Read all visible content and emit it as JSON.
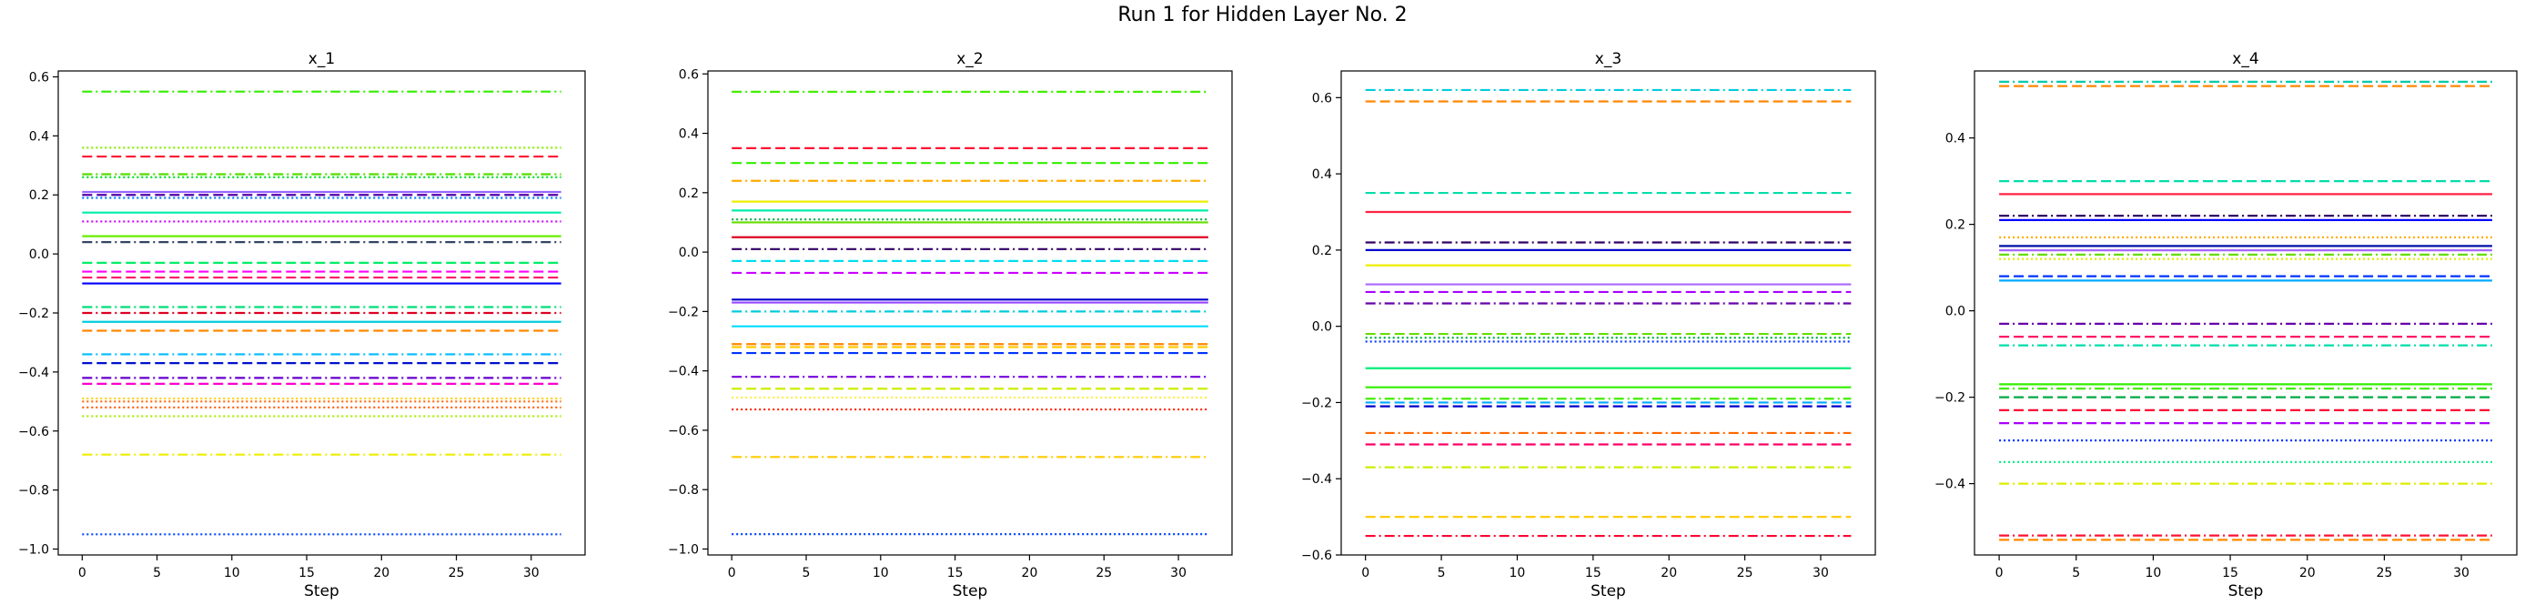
{
  "figure_title": "Run 1 for Hidden Layer No. 2",
  "chart_data": [
    {
      "type": "line",
      "title": "x_1",
      "xlabel": "Step",
      "ylabel": "",
      "xlim": [
        -1.6,
        33.6
      ],
      "ylim": [
        -1.02,
        0.62
      ],
      "xticks": [
        0,
        5,
        10,
        15,
        20,
        25,
        30
      ],
      "yticks": [
        -1.0,
        -0.8,
        -0.6,
        -0.4,
        -0.2,
        0.0,
        0.2,
        0.4,
        0.6
      ],
      "x_range": [
        0,
        32
      ],
      "grid": false,
      "series": [
        {
          "value": 0.55,
          "color": "#33ee00",
          "style": "dashdot"
        },
        {
          "value": 0.36,
          "color": "#88ee00",
          "style": "dotted"
        },
        {
          "value": 0.33,
          "color": "#ff1133",
          "style": "dashed"
        },
        {
          "value": 0.27,
          "color": "#55dd00",
          "style": "dashdot"
        },
        {
          "value": 0.26,
          "color": "#00dd22",
          "style": "dotted"
        },
        {
          "value": 0.21,
          "color": "#9966ff",
          "style": "solid"
        },
        {
          "value": 0.2,
          "color": "#5500aa",
          "style": "dashed"
        },
        {
          "value": 0.19,
          "color": "#0077ff",
          "style": "dotted"
        },
        {
          "value": 0.14,
          "color": "#00eeaa",
          "style": "solid"
        },
        {
          "value": 0.11,
          "color": "#cc00ff",
          "style": "dotted"
        },
        {
          "value": 0.06,
          "color": "#66ee00",
          "style": "solid"
        },
        {
          "value": 0.04,
          "color": "#334466",
          "style": "dashdot"
        },
        {
          "value": -0.03,
          "color": "#00ee66",
          "style": "dashed"
        },
        {
          "value": -0.06,
          "color": "#ff00ff",
          "style": "dashed"
        },
        {
          "value": -0.08,
          "color": "#ff1166",
          "style": "dashed"
        },
        {
          "value": -0.1,
          "color": "#0000ff",
          "style": "solid"
        },
        {
          "value": -0.18,
          "color": "#00dd77",
          "style": "dashdot"
        },
        {
          "value": -0.2,
          "color": "#dd0022",
          "style": "dashdot"
        },
        {
          "value": -0.23,
          "color": "#00ccdd",
          "style": "solid"
        },
        {
          "value": -0.26,
          "color": "#ff8800",
          "style": "dashed"
        },
        {
          "value": -0.34,
          "color": "#00bbff",
          "style": "dashdot"
        },
        {
          "value": -0.37,
          "color": "#0011cc",
          "style": "dashed"
        },
        {
          "value": -0.42,
          "color": "#6600cc",
          "style": "dashdot"
        },
        {
          "value": -0.44,
          "color": "#ff00cc",
          "style": "dashed"
        },
        {
          "value": -0.49,
          "color": "#ffcc00",
          "style": "dotted"
        },
        {
          "value": -0.5,
          "color": "#ff6600",
          "style": "dotted"
        },
        {
          "value": -0.52,
          "color": "#ff5500",
          "style": "dotted"
        },
        {
          "value": -0.55,
          "color": "#aaee00",
          "style": "dotted"
        },
        {
          "value": -0.68,
          "color": "#eeee00",
          "style": "dashdot"
        },
        {
          "value": -0.95,
          "color": "#0044ff",
          "style": "dotted"
        }
      ]
    },
    {
      "type": "line",
      "title": "x_2",
      "xlabel": "Step",
      "ylabel": "",
      "xlim": [
        -1.6,
        33.6
      ],
      "ylim": [
        -1.02,
        0.61
      ],
      "xticks": [
        0,
        5,
        10,
        15,
        20,
        25,
        30
      ],
      "yticks": [
        -1.0,
        -0.8,
        -0.6,
        -0.4,
        -0.2,
        0.0,
        0.2,
        0.4,
        0.6
      ],
      "x_range": [
        0,
        32
      ],
      "grid": false,
      "series": [
        {
          "value": 0.54,
          "color": "#44ee00",
          "style": "dashdot"
        },
        {
          "value": 0.35,
          "color": "#ff1133",
          "style": "dashed"
        },
        {
          "value": 0.3,
          "color": "#33ee00",
          "style": "dashed"
        },
        {
          "value": 0.24,
          "color": "#ffaa00",
          "style": "dashdot"
        },
        {
          "value": 0.17,
          "color": "#eeee00",
          "style": "solid"
        },
        {
          "value": 0.14,
          "color": "#00eeaa",
          "style": "solid"
        },
        {
          "value": 0.11,
          "color": "#00aa44",
          "style": "dotted"
        },
        {
          "value": 0.1,
          "color": "#66dd00",
          "style": "solid"
        },
        {
          "value": 0.05,
          "color": "#dd0022",
          "style": "solid"
        },
        {
          "value": 0.01,
          "color": "#330066",
          "style": "dashdot"
        },
        {
          "value": -0.03,
          "color": "#00ddee",
          "style": "dashed"
        },
        {
          "value": -0.07,
          "color": "#cc00ff",
          "style": "dashed"
        },
        {
          "value": -0.16,
          "color": "#0000cc",
          "style": "solid"
        },
        {
          "value": -0.17,
          "color": "#9944ff",
          "style": "solid"
        },
        {
          "value": -0.2,
          "color": "#00ccdd",
          "style": "dashdot"
        },
        {
          "value": -0.25,
          "color": "#00ddff",
          "style": "solid"
        },
        {
          "value": -0.31,
          "color": "#ff8800",
          "style": "dashed"
        },
        {
          "value": -0.32,
          "color": "#ffcc00",
          "style": "dashed"
        },
        {
          "value": -0.34,
          "color": "#0033ff",
          "style": "dashed"
        },
        {
          "value": -0.42,
          "color": "#7700dd",
          "style": "dashdot"
        },
        {
          "value": -0.46,
          "color": "#ccee00",
          "style": "dashed"
        },
        {
          "value": -0.49,
          "color": "#ffee44",
          "style": "dotted"
        },
        {
          "value": -0.53,
          "color": "#ff2200",
          "style": "dotted"
        },
        {
          "value": -0.69,
          "color": "#ffcc00",
          "style": "dashdot"
        },
        {
          "value": -0.95,
          "color": "#0044ff",
          "style": "dotted"
        }
      ]
    },
    {
      "type": "line",
      "title": "x_3",
      "xlabel": "Step",
      "ylabel": "",
      "xlim": [
        -1.6,
        33.6
      ],
      "ylim": [
        -0.6,
        0.67
      ],
      "xticks": [
        0,
        5,
        10,
        15,
        20,
        25,
        30
      ],
      "yticks": [
        -0.6,
        -0.4,
        -0.2,
        0.0,
        0.2,
        0.4,
        0.6
      ],
      "x_range": [
        0,
        32
      ],
      "grid": false,
      "series": [
        {
          "value": 0.62,
          "color": "#00ccdd",
          "style": "dashdot"
        },
        {
          "value": 0.59,
          "color": "#ff8800",
          "style": "dashed"
        },
        {
          "value": 0.35,
          "color": "#00ddaa",
          "style": "dashed"
        },
        {
          "value": 0.3,
          "color": "#ff2244",
          "style": "solid"
        },
        {
          "value": 0.22,
          "color": "#330066",
          "style": "dashdot"
        },
        {
          "value": 0.2,
          "color": "#0000cc",
          "style": "solid"
        },
        {
          "value": 0.16,
          "color": "#eeee00",
          "style": "solid"
        },
        {
          "value": 0.11,
          "color": "#aa66ff",
          "style": "solid"
        },
        {
          "value": 0.09,
          "color": "#aa00ff",
          "style": "dashed"
        },
        {
          "value": 0.06,
          "color": "#6600aa",
          "style": "dashdot"
        },
        {
          "value": -0.02,
          "color": "#66dd00",
          "style": "dashed"
        },
        {
          "value": -0.03,
          "color": "#00aa44",
          "style": "dotted"
        },
        {
          "value": -0.04,
          "color": "#0033ff",
          "style": "dotted"
        },
        {
          "value": -0.11,
          "color": "#00ee77",
          "style": "solid"
        },
        {
          "value": -0.16,
          "color": "#33ee00",
          "style": "solid"
        },
        {
          "value": -0.19,
          "color": "#44ee00",
          "style": "dashdot"
        },
        {
          "value": -0.2,
          "color": "#00aaff",
          "style": "dashed"
        },
        {
          "value": -0.21,
          "color": "#0000cc",
          "style": "dashed"
        },
        {
          "value": -0.28,
          "color": "#ff6600",
          "style": "dashdot"
        },
        {
          "value": -0.31,
          "color": "#ff0066",
          "style": "dashed"
        },
        {
          "value": -0.37,
          "color": "#ccee00",
          "style": "dashdot"
        },
        {
          "value": -0.5,
          "color": "#ffcc00",
          "style": "dashed"
        },
        {
          "value": -0.55,
          "color": "#ff0033",
          "style": "dashdot"
        }
      ]
    },
    {
      "type": "line",
      "title": "x_4",
      "xlabel": "Step",
      "ylabel": "",
      "xlim": [
        -1.6,
        33.6
      ],
      "ylim": [
        -0.565,
        0.555
      ],
      "xticks": [
        0,
        5,
        10,
        15,
        20,
        25,
        30
      ],
      "yticks": [
        -0.4,
        -0.2,
        0.0,
        0.2,
        0.4
      ],
      "x_range": [
        0,
        32
      ],
      "grid": false,
      "series": [
        {
          "value": 0.53,
          "color": "#00ccaa",
          "style": "dashdot"
        },
        {
          "value": 0.52,
          "color": "#ff8800",
          "style": "dashed"
        },
        {
          "value": 0.3,
          "color": "#00ddaa",
          "style": "dashed"
        },
        {
          "value": 0.27,
          "color": "#ff2244",
          "style": "solid"
        },
        {
          "value": 0.22,
          "color": "#330066",
          "style": "dashdot"
        },
        {
          "value": 0.21,
          "color": "#0000ff",
          "style": "solid"
        },
        {
          "value": 0.17,
          "color": "#ffaa00",
          "style": "dotted"
        },
        {
          "value": 0.15,
          "color": "#0011aa",
          "style": "solid"
        },
        {
          "value": 0.14,
          "color": "#aa66ff",
          "style": "solid"
        },
        {
          "value": 0.13,
          "color": "#66dd00",
          "style": "dashdot"
        },
        {
          "value": 0.12,
          "color": "#ddee00",
          "style": "dotted"
        },
        {
          "value": 0.08,
          "color": "#0033ff",
          "style": "dashed"
        },
        {
          "value": 0.07,
          "color": "#00aaff",
          "style": "solid"
        },
        {
          "value": -0.03,
          "color": "#6600aa",
          "style": "dashdot"
        },
        {
          "value": -0.06,
          "color": "#ff1166",
          "style": "dashed"
        },
        {
          "value": -0.08,
          "color": "#00ddaa",
          "style": "dashdot"
        },
        {
          "value": -0.17,
          "color": "#33ee00",
          "style": "solid"
        },
        {
          "value": -0.18,
          "color": "#44ee00",
          "style": "dashdot"
        },
        {
          "value": -0.2,
          "color": "#00aa44",
          "style": "dashed"
        },
        {
          "value": -0.23,
          "color": "#ff0033",
          "style": "dashed"
        },
        {
          "value": -0.26,
          "color": "#aa00ff",
          "style": "dashed"
        },
        {
          "value": -0.3,
          "color": "#0033ff",
          "style": "dotted"
        },
        {
          "value": -0.35,
          "color": "#00ee88",
          "style": "dotted"
        },
        {
          "value": -0.4,
          "color": "#ddee00",
          "style": "dashdot"
        },
        {
          "value": -0.52,
          "color": "#ff1133",
          "style": "dashdot"
        },
        {
          "value": -0.53,
          "color": "#ff8800",
          "style": "dashed"
        }
      ]
    }
  ]
}
